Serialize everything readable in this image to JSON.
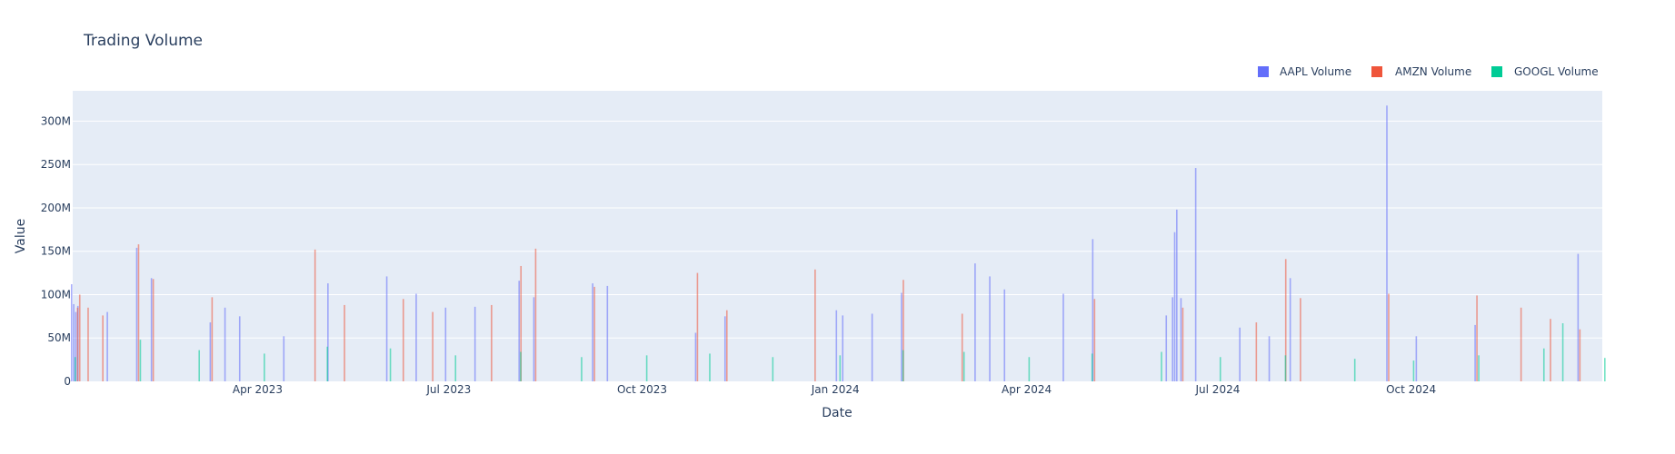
{
  "chart_data": {
    "type": "bar",
    "title": "Trading Volume",
    "xlabel": "Date",
    "ylabel": "Value",
    "x_range": [
      "2023-01-03",
      "2024-12-31"
    ],
    "ylim": [
      0,
      335000000
    ],
    "y_ticks": [
      0,
      50000000,
      100000000,
      150000000,
      200000000,
      250000000,
      300000000
    ],
    "y_tick_labels": [
      "0",
      "50M",
      "100M",
      "150M",
      "200M",
      "250M",
      "300M"
    ],
    "x_ticks": [
      "2023-04-01",
      "2023-07-01",
      "2023-10-01",
      "2024-01-01",
      "2024-04-01",
      "2024-07-01",
      "2024-10-01"
    ],
    "x_tick_labels": [
      "Apr 2023",
      "Jul 2023",
      "Oct 2023",
      "Jan 2024",
      "Apr 2024",
      "Jul 2024",
      "Oct 2024"
    ],
    "grid": true,
    "legend_position": "top-right",
    "series": [
      {
        "name": "AAPL Volume",
        "color": "#636efa",
        "points": [
          [
            "2023-01-03",
            112000000
          ],
          [
            "2023-01-04",
            89000000
          ],
          [
            "2023-01-05",
            80000000
          ],
          [
            "2023-01-06",
            87000000
          ],
          [
            "2023-01-20",
            80000000
          ],
          [
            "2023-02-03",
            154000000
          ],
          [
            "2023-02-10",
            119000000
          ],
          [
            "2023-03-10",
            68000000
          ],
          [
            "2023-03-17",
            85000000
          ],
          [
            "2023-03-24",
            75000000
          ],
          [
            "2023-04-14",
            52000000
          ],
          [
            "2023-05-05",
            113000000
          ],
          [
            "2023-06-02",
            121000000
          ],
          [
            "2023-06-16",
            101000000
          ],
          [
            "2023-06-30",
            85000000
          ],
          [
            "2023-07-14",
            86000000
          ],
          [
            "2023-08-04",
            116000000
          ],
          [
            "2023-08-11",
            97000000
          ],
          [
            "2023-09-08",
            113000000
          ],
          [
            "2023-09-15",
            110000000
          ],
          [
            "2023-10-27",
            56000000
          ],
          [
            "2023-11-10",
            75000000
          ],
          [
            "2024-01-02",
            82000000
          ],
          [
            "2024-01-05",
            76000000
          ],
          [
            "2024-01-19",
            78000000
          ],
          [
            "2024-02-02",
            102000000
          ],
          [
            "2024-03-08",
            136000000
          ],
          [
            "2024-03-15",
            121000000
          ],
          [
            "2024-03-22",
            106000000
          ],
          [
            "2024-04-19",
            101000000
          ],
          [
            "2024-05-03",
            164000000
          ],
          [
            "2024-06-07",
            76000000
          ],
          [
            "2024-06-10",
            97000000
          ],
          [
            "2024-06-11",
            172000000
          ],
          [
            "2024-06-12",
            198000000
          ],
          [
            "2024-06-14",
            96000000
          ],
          [
            "2024-06-21",
            246000000
          ],
          [
            "2024-07-12",
            62000000
          ],
          [
            "2024-07-26",
            52000000
          ],
          [
            "2024-08-05",
            119000000
          ],
          [
            "2024-09-20",
            318000000
          ],
          [
            "2024-10-04",
            52000000
          ],
          [
            "2024-11-01",
            65000000
          ],
          [
            "2024-12-20",
            147000000
          ]
        ]
      },
      {
        "name": "AMZN Volume",
        "color": "#ef553b",
        "points": [
          [
            "2023-01-05",
            85000000
          ],
          [
            "2023-01-06",
            100000000
          ],
          [
            "2023-01-10",
            85000000
          ],
          [
            "2023-01-17",
            76000000
          ],
          [
            "2023-02-03",
            158000000
          ],
          [
            "2023-02-10",
            118000000
          ],
          [
            "2023-03-10",
            97000000
          ],
          [
            "2023-04-28",
            152000000
          ],
          [
            "2023-05-12",
            88000000
          ],
          [
            "2023-06-09",
            95000000
          ],
          [
            "2023-06-23",
            80000000
          ],
          [
            "2023-07-21",
            88000000
          ],
          [
            "2023-08-04",
            133000000
          ],
          [
            "2023-08-11",
            153000000
          ],
          [
            "2023-09-08",
            109000000
          ],
          [
            "2023-10-27",
            125000000
          ],
          [
            "2023-11-10",
            82000000
          ],
          [
            "2023-12-22",
            129000000
          ],
          [
            "2024-02-02",
            117000000
          ],
          [
            "2024-03-01",
            78000000
          ],
          [
            "2024-05-03",
            95000000
          ],
          [
            "2024-06-14",
            85000000
          ],
          [
            "2024-07-19",
            68000000
          ],
          [
            "2024-08-02",
            141000000
          ],
          [
            "2024-08-09",
            96000000
          ],
          [
            "2024-09-20",
            101000000
          ],
          [
            "2024-11-01",
            99000000
          ],
          [
            "2024-11-22",
            85000000
          ],
          [
            "2024-12-06",
            72000000
          ],
          [
            "2024-12-20",
            60000000
          ]
        ]
      },
      {
        "name": "GOOGL Volume",
        "color": "#00cc96",
        "points": [
          [
            "2023-01-03",
            28000000
          ],
          [
            "2023-02-03",
            48000000
          ],
          [
            "2023-03-03",
            36000000
          ],
          [
            "2023-04-03",
            32000000
          ],
          [
            "2023-05-03",
            40000000
          ],
          [
            "2023-06-02",
            38000000
          ],
          [
            "2023-07-03",
            30000000
          ],
          [
            "2023-08-03",
            34000000
          ],
          [
            "2023-09-01",
            28000000
          ],
          [
            "2023-10-02",
            30000000
          ],
          [
            "2023-11-01",
            32000000
          ],
          [
            "2023-12-01",
            28000000
          ],
          [
            "2024-01-02",
            30000000
          ],
          [
            "2024-02-01",
            36000000
          ],
          [
            "2024-03-01",
            34000000
          ],
          [
            "2024-04-01",
            28000000
          ],
          [
            "2024-05-01",
            32000000
          ],
          [
            "2024-06-03",
            34000000
          ],
          [
            "2024-07-01",
            28000000
          ],
          [
            "2024-08-01",
            30000000
          ],
          [
            "2024-09-03",
            26000000
          ],
          [
            "2024-10-01",
            24000000
          ],
          [
            "2024-11-01",
            30000000
          ],
          [
            "2024-12-02",
            38000000
          ],
          [
            "2024-12-11",
            67000000
          ],
          [
            "2024-12-31",
            27000000
          ]
        ]
      }
    ]
  }
}
